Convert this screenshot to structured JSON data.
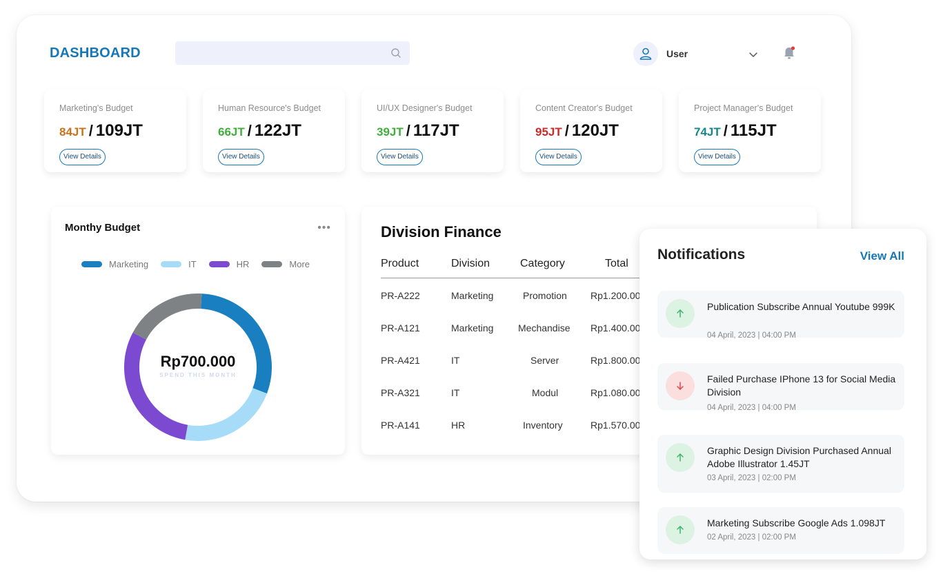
{
  "header": {
    "title": "DASHBOARD",
    "search_placeholder": "",
    "user_label": "User"
  },
  "budgets": [
    {
      "label": "Marketing's Budget",
      "spent": "84JT",
      "total": "109JT",
      "color": "#c8721a",
      "button": "View Details"
    },
    {
      "label": "Human Resource's Budget",
      "spent": "66JT",
      "total": "122JT",
      "color": "#3fae3a",
      "button": "View Details"
    },
    {
      "label": "UI/UX Designer's Budget",
      "spent": "39JT",
      "total": "117JT",
      "color": "#3fae3a",
      "button": "View Details"
    },
    {
      "label": "Content Creator's Budget",
      "spent": "95JT",
      "total": "120JT",
      "color": "#cf2a2a",
      "button": "View Details"
    },
    {
      "label": "Project Manager's Budget",
      "spent": "74JT",
      "total": "115JT",
      "color": "#17868a",
      "button": "View Details"
    }
  ],
  "monthly_budget": {
    "title": "Monthy Budget",
    "legend": [
      {
        "name": "Marketing",
        "color": "#1a7fc0"
      },
      {
        "name": "IT",
        "color": "#a6dcf7"
      },
      {
        "name": "HR",
        "color": "#7c4ad0"
      },
      {
        "name": "More",
        "color": "#7e8284"
      }
    ],
    "amount": "Rp700.000",
    "subtitle": "SPEND THIS MONTH"
  },
  "chart_data": {
    "type": "pie",
    "title": "Monthy Budget",
    "categories": [
      "Marketing",
      "IT",
      "HR",
      "More"
    ],
    "values": [
      30,
      22,
      30,
      18
    ],
    "colors": [
      "#1a7fc0",
      "#a6dcf7",
      "#7c4ad0",
      "#7e8284"
    ],
    "legend": "top"
  },
  "finance": {
    "title": "Division Finance",
    "columns": [
      "Product",
      "Division",
      "Category",
      "Total"
    ],
    "rows": [
      [
        "PR-A222",
        "Marketing",
        "Promotion",
        "Rp1.200.00"
      ],
      [
        "PR-A121",
        "Marketing",
        "Mechandise",
        "Rp1.400.00"
      ],
      [
        "PR-A421",
        "IT",
        "Server",
        "Rp1.800.00"
      ],
      [
        "PR-A321",
        "IT",
        "Modul",
        "Rp1.080.00"
      ],
      [
        "PR-A141",
        "HR",
        "Inventory",
        "Rp1.570.00"
      ]
    ]
  },
  "notifications": {
    "title": "Notifications",
    "view_all": "View All",
    "items": [
      {
        "text": "Publication Subscribe Annual Youtube 999K",
        "time": "04 April, 2023 | 04:00 PM",
        "direction": "up"
      },
      {
        "text": "Failed Purchase IPhone 13 for Social Media Division",
        "time": "04 April, 2023 | 04:00 PM",
        "direction": "down"
      },
      {
        "text": "Graphic Design Division Purchased Annual Adobe Illustrator 1.45JT",
        "time": "03 April, 2023 | 02:00 PM",
        "direction": "up"
      },
      {
        "text": "Marketing Subscribe Google Ads 1.098JT",
        "time": "02 April, 2023 | 02:00 PM",
        "direction": "up"
      }
    ]
  }
}
